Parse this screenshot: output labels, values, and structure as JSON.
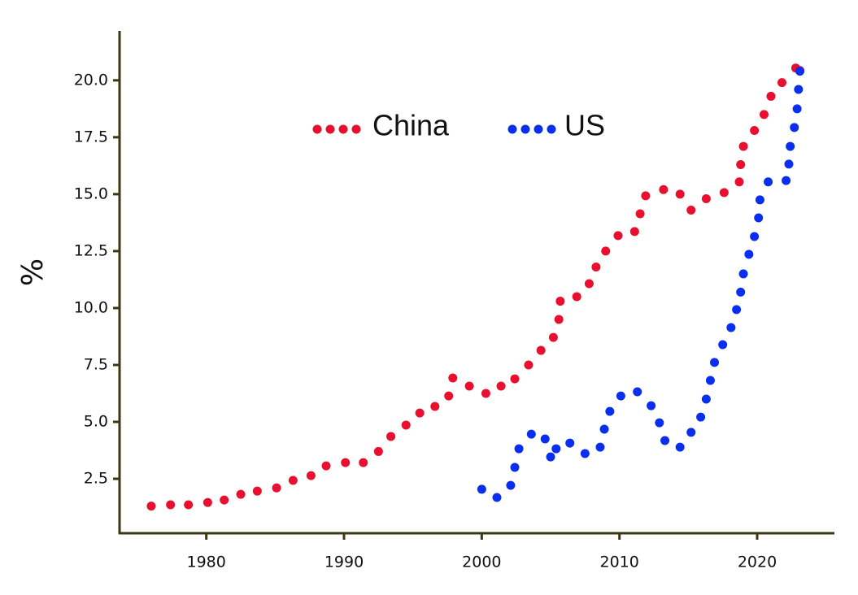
{
  "chart_data": {
    "type": "scatter",
    "y_label": "%",
    "xlim": [
      1973.7,
      2025.55
    ],
    "ylim": [
      0.11,
      22.1
    ],
    "xticks": [
      1980,
      1990,
      2000,
      2010,
      2020
    ],
    "yticks": [
      {
        "value": 20,
        "label": "20.0"
      },
      17.5,
      {
        "value": 15,
        "label": "15.0"
      },
      12.5,
      {
        "value": 10,
        "label": "10.0"
      },
      7.5,
      {
        "value": 5,
        "label": "5.0"
      },
      2.5
    ],
    "legend_position": "top center",
    "series": [
      {
        "name": "China",
        "color": "#e8102e",
        "x": [
          1976.0,
          1977.4,
          1978.7,
          1980.1,
          1981.3,
          1982.5,
          1983.7,
          1985.1,
          1986.3,
          1987.6,
          1988.7,
          1990.1,
          1991.4,
          1992.5,
          1993.4,
          1994.5,
          1995.5,
          1996.6,
          1997.6,
          1997.9,
          1999.1,
          2000.3,
          2001.4,
          2002.4,
          2003.4,
          2004.3,
          2005.2,
          2005.6,
          2005.7,
          2006.9,
          2007.8,
          2008.3,
          2009.0,
          2009.9,
          2011.1,
          2011.5,
          2011.9,
          2013.2,
          2014.4,
          2015.2,
          2016.3,
          2017.6,
          2018.7,
          2018.8,
          2019.0,
          2019.8,
          2020.5,
          2021.0,
          2021.8,
          2022.8,
          2023.1
        ],
        "values": [
          1.3,
          1.36,
          1.36,
          1.46,
          1.57,
          1.82,
          1.96,
          2.1,
          2.43,
          2.64,
          3.07,
          3.21,
          3.21,
          3.7,
          4.36,
          4.86,
          5.39,
          5.68,
          6.14,
          6.93,
          6.57,
          6.25,
          6.57,
          6.89,
          7.5,
          8.14,
          8.71,
          9.5,
          10.3,
          10.5,
          11.07,
          11.8,
          12.5,
          13.18,
          13.36,
          14.14,
          14.93,
          15.2,
          15.0,
          14.3,
          14.8,
          15.07,
          15.54,
          16.3,
          17.1,
          17.8,
          18.5,
          19.3,
          19.9,
          20.54,
          20.43
        ]
      },
      {
        "name": "US",
        "color": "#0a2ef0",
        "x": [
          2000.0,
          2001.1,
          2002.1,
          2002.4,
          2002.7,
          2003.6,
          2004.6,
          2005.0,
          2005.4,
          2006.4,
          2007.5,
          2008.6,
          2008.9,
          2009.3,
          2010.1,
          2011.3,
          2012.3,
          2012.9,
          2013.3,
          2014.4,
          2015.2,
          2015.9,
          2016.3,
          2016.6,
          2016.9,
          2017.5,
          2018.1,
          2018.5,
          2018.8,
          2019.0,
          2019.4,
          2019.8,
          2020.1,
          2020.2,
          2020.8,
          2022.1,
          2022.3,
          2022.4,
          2022.7,
          2022.9,
          2023.0,
          2023.1
        ],
        "values": [
          2.04,
          1.68,
          2.21,
          3.0,
          3.82,
          4.46,
          4.25,
          3.46,
          3.82,
          4.07,
          3.61,
          3.89,
          4.68,
          5.46,
          6.14,
          6.32,
          5.71,
          4.96,
          4.18,
          3.89,
          4.54,
          5.21,
          6.0,
          6.82,
          7.61,
          8.39,
          9.14,
          9.93,
          10.7,
          11.5,
          12.36,
          13.14,
          13.96,
          14.75,
          15.54,
          15.6,
          16.32,
          17.1,
          17.93,
          18.75,
          19.6,
          20.4
        ]
      }
    ]
  }
}
